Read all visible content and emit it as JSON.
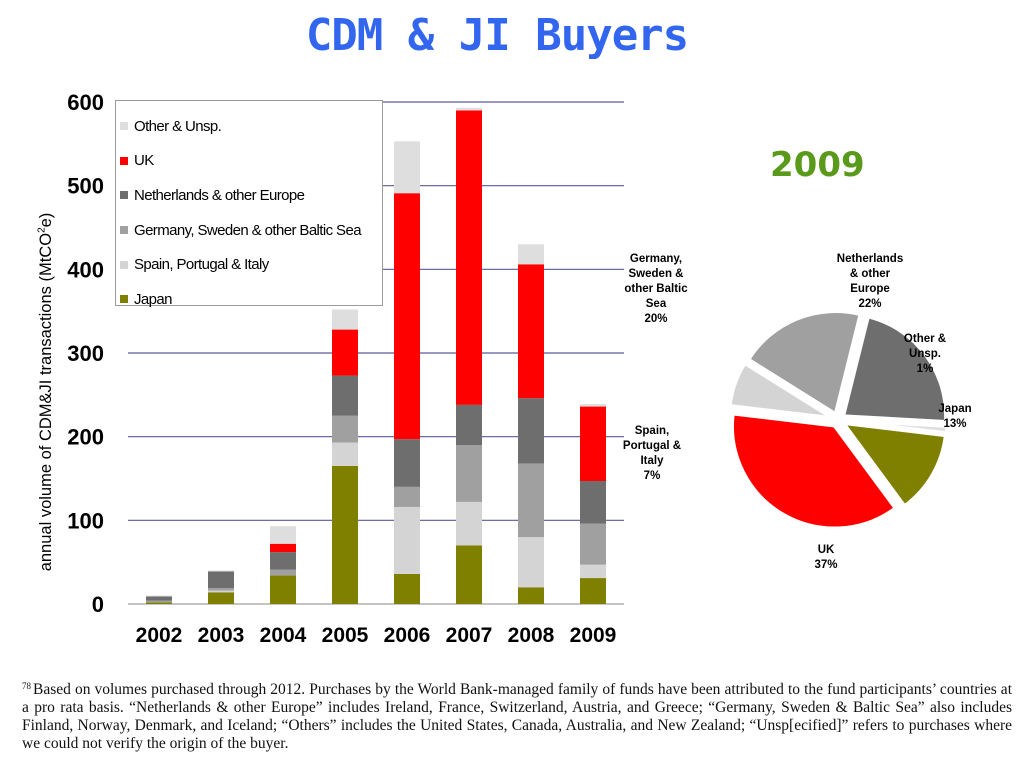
{
  "title": "CDM & JI Buyers",
  "chart_data": [
    {
      "type": "bar",
      "stacked": true,
      "categories": [
        "2002",
        "2003",
        "2004",
        "2005",
        "2006",
        "2007",
        "2008",
        "2009"
      ],
      "ylabel": "annual volume of CDM&JI transactions (MtCO2e)",
      "ylabel_main": "annual volume of CDM&JI transactions (MtCO",
      "ylabel_sup": "2",
      "ylabel_end": "e)",
      "ylim": [
        0,
        600
      ],
      "yticks": [
        0,
        100,
        200,
        300,
        400,
        500,
        600
      ],
      "grid": true,
      "legend_position": "top-left",
      "series": [
        {
          "name": "Japan",
          "color": "#808000",
          "values": [
            2,
            14,
            34,
            165,
            36,
            70,
            20,
            31
          ]
        },
        {
          "name": "Spain, Portugal & Italy",
          "color": "#d4d4d4",
          "values": [
            0,
            2,
            0,
            28,
            80,
            52,
            60,
            16
          ]
        },
        {
          "name": "Germany, Sweden & other Baltic Sea",
          "color": "#a0a0a0",
          "values": [
            2,
            3,
            7,
            32,
            24,
            68,
            88,
            49
          ]
        },
        {
          "name": "Netherlands & other Europe",
          "color": "#6e6e6e",
          "values": [
            5,
            20,
            21,
            48,
            57,
            48,
            78,
            51
          ]
        },
        {
          "name": "UK",
          "color": "#ff0000",
          "values": [
            0,
            0,
            10,
            55,
            294,
            352,
            160,
            89
          ]
        },
        {
          "name": "Other & Unsp.",
          "color": "#dedede",
          "values": [
            1,
            1,
            21,
            24,
            62,
            3,
            24,
            3
          ]
        }
      ]
    },
    {
      "type": "pie",
      "title": "2009",
      "slices": [
        {
          "label": "Netherlands & other Europe",
          "label_lines": [
            "Netherlands",
            "& other",
            "Europe",
            "22%"
          ],
          "value": 22,
          "color": "#6e6e6e"
        },
        {
          "label": "Other & Unsp.",
          "label_lines": [
            "Other &",
            "Unsp.",
            "1%"
          ],
          "value": 1,
          "color": "#dedede"
        },
        {
          "label": "Japan",
          "label_lines": [
            "Japan",
            "13%"
          ],
          "value": 13,
          "color": "#808000"
        },
        {
          "label": "UK",
          "label_lines": [
            "UK",
            "37%"
          ],
          "value": 37,
          "color": "#ff0000"
        },
        {
          "label": "Spain, Portugal & Italy",
          "label_lines": [
            "Spain,",
            "Portugal &",
            "Italy",
            "7%"
          ],
          "value": 7,
          "color": "#d4d4d4"
        },
        {
          "label": "Germany, Sweden & other Baltic Sea",
          "label_lines": [
            "Germany,",
            "Sweden &",
            "other Baltic",
            "Sea",
            "20%"
          ],
          "value": 20,
          "color": "#a0a0a0"
        }
      ]
    }
  ],
  "legend_order": [
    "Other & Unsp.",
    "UK",
    "Netherlands & other Europe",
    "Germany, Sweden & other Baltic Sea",
    "Spain, Portugal & Italy",
    "Japan"
  ],
  "footnote": {
    "marker": "78",
    "text": "Based on volumes purchased through 2012. Purchases by the World Bank-managed family of funds have been attributed to the fund participants’ countries at a pro rata basis. “Netherlands & other Europe” includes Ireland, France, Switzerland, Austria, and Greece; “Germany, Sweden & Baltic Sea” also includes Finland, Norway, Denmark, and Iceland; “Others” includes the United States, Canada, Australia, and New Zealand; “Unsp[ecified]” refers to purchases where we could not verify the origin of the buyer."
  }
}
